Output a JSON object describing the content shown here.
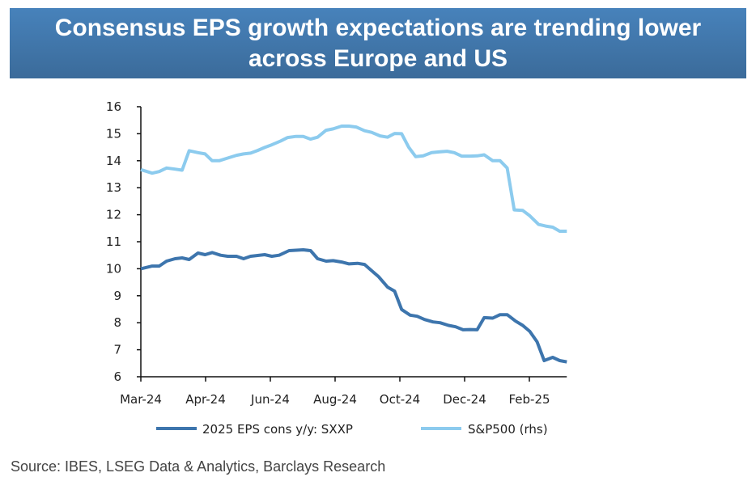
{
  "title": "Consensus EPS growth expectations are trending lower across Europe and US",
  "source": "Source: IBES, LSEG Data & Analytics, Barclays Research",
  "chart_data": {
    "type": "line",
    "title": "Consensus EPS growth expectations are trending lower across Europe and US",
    "xlabel": "",
    "ylabel": "",
    "x_unit": "months since Mar-24",
    "xlim": [
      0,
      12.07
    ],
    "ylim": [
      6,
      16
    ],
    "yticks": [
      "6",
      "7",
      "8",
      "9",
      "10",
      "11",
      "12",
      "13",
      "14",
      "15",
      "16"
    ],
    "xticks": [
      {
        "x": 0,
        "label": "Mar-24"
      },
      {
        "x": 2,
        "label": "Apr-24"
      },
      {
        "x": 4,
        "label": "Jun-24"
      },
      {
        "x": 6,
        "label": "Aug-24"
      },
      {
        "x": 8,
        "label": "Oct-24"
      },
      {
        "x": 10,
        "label": "Dec-24"
      },
      {
        "x": 12,
        "label": "Feb-25"
      }
    ],
    "legend_position": "bottom",
    "grid": false,
    "series": [
      {
        "name": "2025 EPS cons y/y: SXXP",
        "color": "#3d75ad",
        "x": [
          0,
          0.32,
          0.52,
          0.73,
          0.97,
          1.17,
          1.37,
          1.62,
          1.82,
          2.02,
          2.26,
          2.46,
          2.71,
          2.91,
          3.11,
          3.51,
          3.71,
          3.92,
          4.2,
          4.6,
          4.81,
          5.01,
          5.25,
          5.45,
          5.69,
          5.9,
          6.14,
          6.34,
          6.54,
          6.74,
          6.99,
          7.19,
          7.39,
          7.63,
          7.83,
          8.04,
          8.28,
          8.48,
          8.72,
          8.92,
          9.13,
          9.33,
          9.53,
          9.73,
          9.97,
          10.18,
          10.38,
          10.62,
          10.82,
          11.02,
          11.23,
          11.43,
          11.67,
          11.87,
          12.07
        ],
        "y": [
          10.0,
          10.1,
          10.1,
          10.28,
          10.37,
          10.4,
          10.34,
          10.58,
          10.52,
          10.6,
          10.5,
          10.46,
          10.46,
          10.37,
          10.46,
          10.52,
          10.46,
          10.5,
          10.67,
          10.7,
          10.67,
          10.37,
          10.28,
          10.3,
          10.25,
          10.18,
          10.2,
          10.16,
          9.93,
          9.7,
          9.32,
          9.17,
          8.49,
          8.28,
          8.24,
          8.12,
          8.03,
          8.0,
          7.9,
          7.85,
          7.74,
          7.75,
          7.74,
          8.19,
          8.17,
          8.3,
          8.3,
          8.06,
          7.9,
          7.68,
          7.29,
          6.6,
          6.72,
          6.6,
          6.55
        ]
      },
      {
        "name": "S&P500 (rhs)",
        "color": "#8ccbee",
        "x": [
          0,
          0.32,
          0.52,
          0.73,
          0.97,
          1.17,
          1.37,
          1.62,
          1.82,
          2.02,
          2.22,
          2.46,
          2.71,
          2.91,
          3.11,
          3.31,
          3.51,
          3.71,
          3.96,
          4.16,
          4.4,
          4.6,
          4.81,
          5.01,
          5.25,
          5.45,
          5.69,
          5.9,
          6.1,
          6.34,
          6.54,
          6.78,
          6.99,
          7.19,
          7.39,
          7.59,
          7.79,
          8.0,
          8.24,
          8.48,
          8.68,
          8.88,
          9.09,
          9.33,
          9.53,
          9.73,
          9.97,
          10.18,
          10.38,
          10.58,
          10.82,
          11.02,
          11.27,
          11.47,
          11.67,
          11.87,
          12.07
        ],
        "y": [
          13.67,
          13.54,
          13.6,
          13.73,
          13.69,
          13.65,
          14.37,
          14.3,
          14.25,
          14.0,
          14.0,
          14.1,
          14.2,
          14.25,
          14.28,
          14.38,
          14.49,
          14.59,
          14.73,
          14.86,
          14.9,
          14.9,
          14.8,
          14.87,
          15.13,
          15.18,
          15.28,
          15.28,
          15.25,
          15.11,
          15.05,
          14.92,
          14.87,
          15.01,
          15.0,
          14.5,
          14.15,
          14.18,
          14.3,
          14.33,
          14.35,
          14.3,
          14.17,
          14.17,
          14.18,
          14.22,
          14.0,
          14.0,
          13.73,
          12.18,
          12.16,
          11.96,
          11.64,
          11.58,
          11.54,
          11.39,
          11.39
        ]
      }
    ]
  }
}
